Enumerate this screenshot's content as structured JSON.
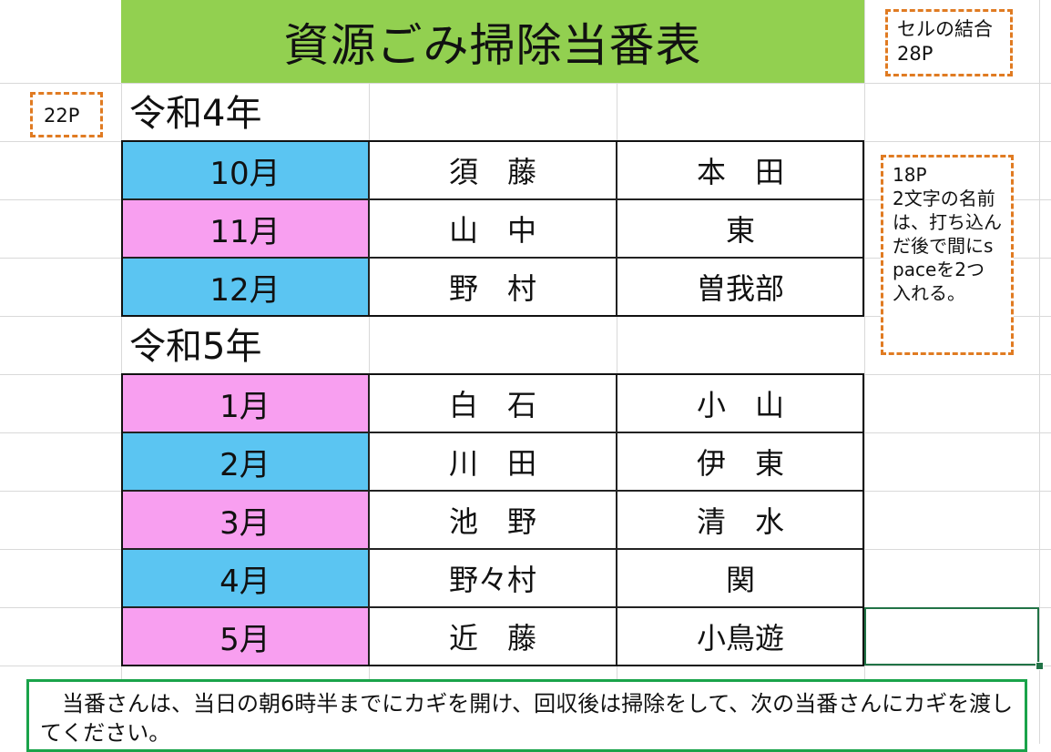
{
  "title": "資源ごみ掃除当番表",
  "notes": {
    "merge": "セルの結合\n28P",
    "size22": "22P",
    "size18": "18P\n2文字の名前は、打ち込んだ後で間にspaceを2つ入れる。"
  },
  "years": [
    {
      "label": "令和4年",
      "rows": [
        {
          "month": "10月",
          "name1": "須　藤",
          "name2": "本　田",
          "color": "#5bc5f2"
        },
        {
          "month": "11月",
          "name1": "山　中",
          "name2": "東",
          "color": "#f89ff0"
        },
        {
          "month": "12月",
          "name1": "野　村",
          "name2": "曽我部",
          "color": "#5bc5f2"
        }
      ]
    },
    {
      "label": "令和5年",
      "rows": [
        {
          "month": "1月",
          "name1": "白　石",
          "name2": "小　山",
          "color": "#f89ff0"
        },
        {
          "month": "2月",
          "name1": "川　田",
          "name2": "伊　東",
          "color": "#5bc5f2"
        },
        {
          "month": "3月",
          "name1": "池　野",
          "name2": "清　水",
          "color": "#f89ff0"
        },
        {
          "month": "4月",
          "name1": "野々村",
          "name2": "関",
          "color": "#5bc5f2"
        },
        {
          "month": "5月",
          "name1": "近　藤",
          "name2": "小鳥遊",
          "color": "#f89ff0"
        }
      ]
    }
  ],
  "footer": "　当番さんは、当日の朝6時半までにカギを開け、回収後は掃除をして、次の当番さんにカギを渡してください。",
  "colors": {
    "header": "#92d050",
    "blue": "#5bc5f2",
    "pink": "#f89ff0",
    "note_border": "#e07b22",
    "footer_border": "#1aa34a"
  }
}
